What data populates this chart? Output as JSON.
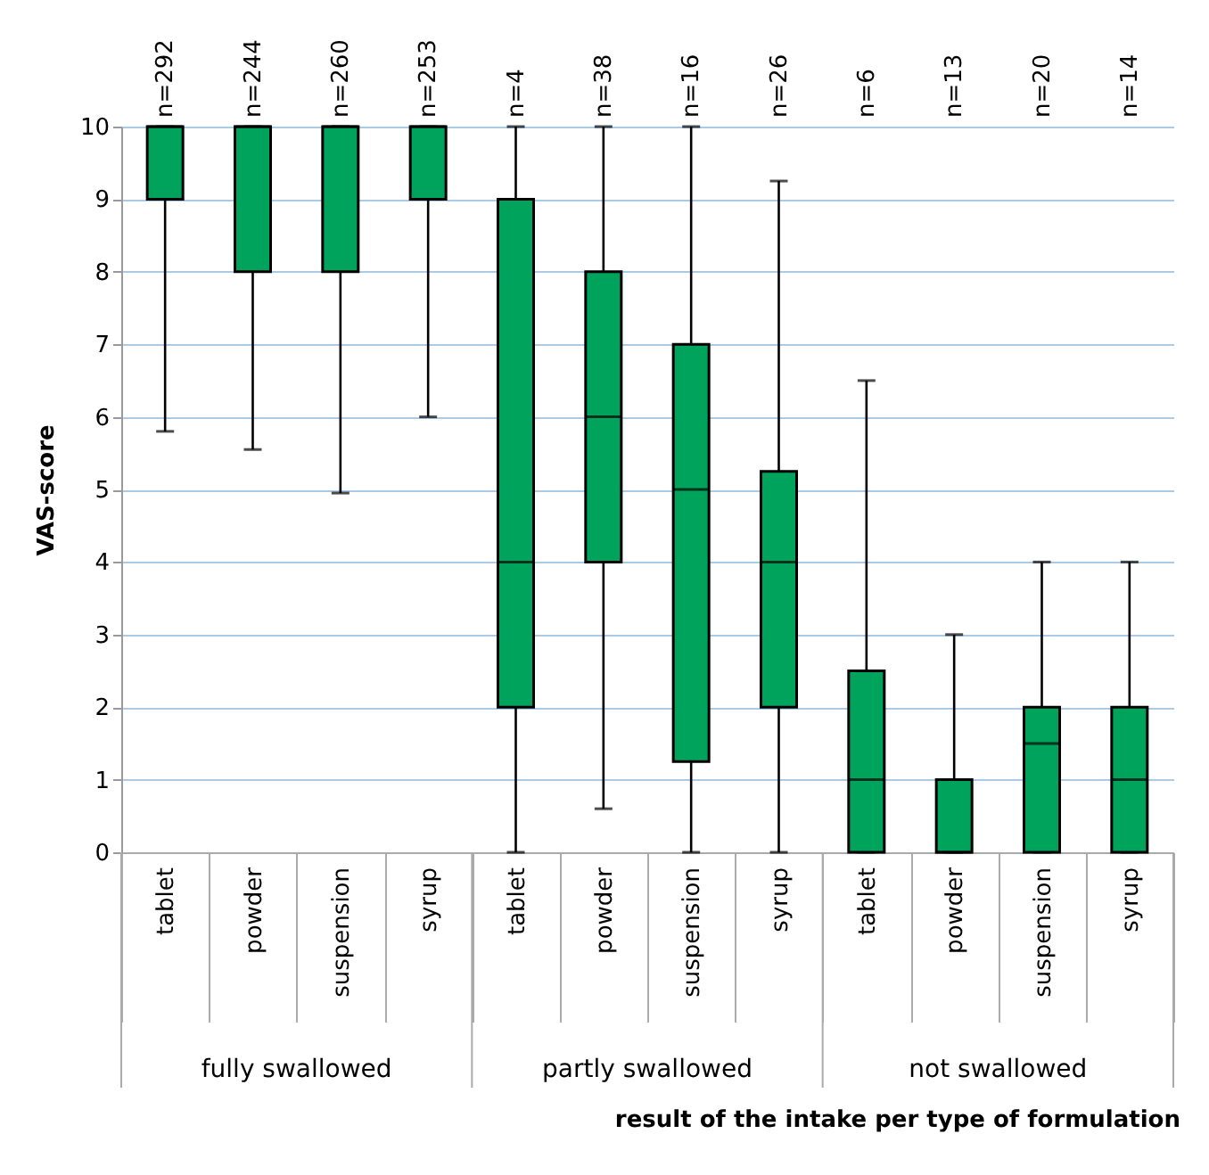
{
  "chart_data": {
    "type": "box",
    "categories": [
      "tablet",
      "powder",
      "suspension",
      "syrup",
      "tablet",
      "powder",
      "suspension",
      "syrup",
      "tablet",
      "powder",
      "suspension",
      "syrup"
    ],
    "boxes": [
      {
        "low": 5.8,
        "q1": 9,
        "median": 10,
        "q3": 10,
        "high": 10
      },
      {
        "low": 5.55,
        "q1": 8,
        "median": 10,
        "q3": 10,
        "high": 10
      },
      {
        "low": 4.95,
        "q1": 8,
        "median": 10,
        "q3": 10,
        "high": 10
      },
      {
        "low": 6,
        "q1": 9,
        "median": 10,
        "q3": 10,
        "high": 10
      },
      {
        "low": 0,
        "q1": 2,
        "median": 4,
        "q3": 9,
        "high": 10
      },
      {
        "low": 0.6,
        "q1": 4,
        "median": 6,
        "q3": 8,
        "high": 10
      },
      {
        "low": 0,
        "q1": 1.25,
        "median": 5,
        "q3": 7,
        "high": 10
      },
      {
        "low": 0,
        "q1": 2,
        "median": 4,
        "q3": 5.25,
        "high": 9.25
      },
      {
        "low": 0,
        "q1": 0,
        "median": 1,
        "q3": 2.5,
        "high": 6.5
      },
      {
        "low": 0,
        "q1": 0,
        "median": 0,
        "q3": 1,
        "high": 3
      },
      {
        "low": 0,
        "q1": 0,
        "median": 1.5,
        "q3": 2,
        "high": 4
      },
      {
        "low": 0,
        "q1": 0,
        "median": 1,
        "q3": 2,
        "high": 4
      }
    ],
    "color": "#00a35c",
    "ylim": [
      0,
      10
    ],
    "yticks": [
      0,
      1,
      2,
      3,
      4,
      5,
      6,
      7,
      8,
      9,
      10
    ],
    "grid": "y",
    "ylabel": "VAS-score",
    "xlabel": "result of the intake per type of formulation",
    "annotations": [
      "n=292",
      "n=244",
      "n=260",
      "n=253",
      "n=4",
      "n=38",
      "n=16",
      "n=26",
      "n=6",
      "n=13",
      "n=20",
      "n=14",
      "fully swallowed",
      "partly swallowed",
      "not swallowed"
    ]
  }
}
